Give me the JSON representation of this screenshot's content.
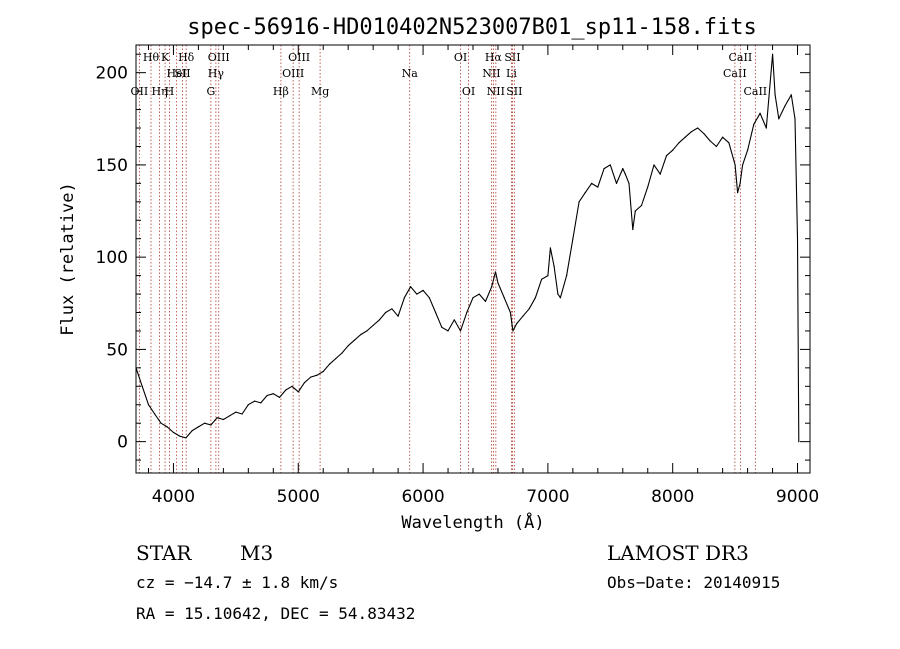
{
  "chart_data": {
    "type": "line",
    "title": "spec-56916-HD010402N523007B01_sp11-158.fits",
    "xlabel": "Wavelength (Å)",
    "ylabel": "Flux (relative)",
    "xlim": [
      3700,
      9100
    ],
    "ylim": [
      -17,
      215
    ],
    "xticks": [
      4000,
      5000,
      6000,
      7000,
      8000,
      9000
    ],
    "yticks": [
      0,
      50,
      100,
      150,
      200
    ],
    "grid": false,
    "series": [
      {
        "name": "flux",
        "color": "#000000",
        "x": [
          3700,
          3750,
          3800,
          3850,
          3900,
          3950,
          4000,
          4050,
          4100,
          4150,
          4200,
          4250,
          4300,
          4350,
          4400,
          4450,
          4500,
          4550,
          4600,
          4650,
          4700,
          4750,
          4800,
          4850,
          4900,
          4950,
          5000,
          5050,
          5100,
          5150,
          5200,
          5250,
          5300,
          5350,
          5400,
          5450,
          5500,
          5550,
          5600,
          5650,
          5700,
          5750,
          5800,
          5850,
          5900,
          5950,
          6000,
          6050,
          6100,
          6150,
          6200,
          6250,
          6300,
          6350,
          6400,
          6450,
          6500,
          6550,
          6580,
          6600,
          6650,
          6700,
          6720,
          6750,
          6800,
          6850,
          6900,
          6950,
          7000,
          7020,
          7050,
          7080,
          7100,
          7150,
          7200,
          7250,
          7300,
          7350,
          7400,
          7450,
          7500,
          7550,
          7600,
          7620,
          7650,
          7680,
          7700,
          7750,
          7800,
          7850,
          7900,
          7950,
          8000,
          8050,
          8100,
          8150,
          8200,
          8250,
          8300,
          8350,
          8400,
          8450,
          8500,
          8520,
          8540,
          8560,
          8600,
          8650,
          8700,
          8750,
          8800,
          8820,
          8850,
          8900,
          8950,
          8980,
          9000,
          9010
        ],
        "y": [
          40,
          30,
          20,
          15,
          10,
          8,
          5,
          3,
          2,
          6,
          8,
          10,
          9,
          13,
          12,
          14,
          16,
          15,
          20,
          22,
          21,
          25,
          26,
          24,
          28,
          30,
          27,
          32,
          35,
          36,
          38,
          42,
          45,
          48,
          52,
          55,
          58,
          60,
          63,
          66,
          70,
          72,
          68,
          78,
          84,
          80,
          82,
          78,
          70,
          62,
          60,
          66,
          60,
          70,
          78,
          80,
          76,
          84,
          92,
          86,
          78,
          70,
          60,
          64,
          68,
          72,
          78,
          88,
          90,
          105,
          95,
          80,
          78,
          90,
          110,
          130,
          135,
          140,
          138,
          148,
          150,
          140,
          148,
          145,
          140,
          115,
          125,
          128,
          138,
          150,
          145,
          155,
          158,
          162,
          165,
          168,
          170,
          167,
          163,
          160,
          165,
          162,
          150,
          135,
          140,
          150,
          158,
          172,
          178,
          170,
          210,
          188,
          175,
          182,
          188,
          175,
          110,
          0
        ]
      }
    ],
    "lines": [
      {
        "wl": 3727,
        "label": "OII",
        "row": 3
      },
      {
        "wl": 3820,
        "label": "Hθ",
        "row": 1
      },
      {
        "wl": 3889,
        "label": "Hη",
        "row": 3
      },
      {
        "wl": 3933,
        "label": "K",
        "row": 1
      },
      {
        "wl": 3968,
        "label": "H",
        "row": 3
      },
      {
        "wl": 4026,
        "label": "HeI",
        "row": 2
      },
      {
        "wl": 4072,
        "label": "SII",
        "row": 2
      },
      {
        "wl": 4102,
        "label": "Hδ",
        "row": 1
      },
      {
        "wl": 4300,
        "label": "G",
        "row": 3
      },
      {
        "wl": 4340,
        "label": "Hγ",
        "row": 2
      },
      {
        "wl": 4363,
        "label": "OIII",
        "row": 1
      },
      {
        "wl": 4861,
        "label": "Hβ",
        "row": 3
      },
      {
        "wl": 4959,
        "label": "OIII",
        "row": 2
      },
      {
        "wl": 5007,
        "label": "OIII",
        "row": 1
      },
      {
        "wl": 5175,
        "label": "Mg",
        "row": 3
      },
      {
        "wl": 5893,
        "label": "Na",
        "row": 2
      },
      {
        "wl": 6300,
        "label": "OI",
        "row": 1
      },
      {
        "wl": 6364,
        "label": "OI",
        "row": 3
      },
      {
        "wl": 6548,
        "label": "NII",
        "row": 2
      },
      {
        "wl": 6563,
        "label": "Hα",
        "row": 1
      },
      {
        "wl": 6583,
        "label": "NII",
        "row": 3
      },
      {
        "wl": 6708,
        "label": "Li",
        "row": 2
      },
      {
        "wl": 6716,
        "label": "SII",
        "row": 1
      },
      {
        "wl": 6731,
        "label": "SII",
        "row": 3
      },
      {
        "wl": 8498,
        "label": "CaII",
        "row": 2
      },
      {
        "wl": 8542,
        "label": "CaII",
        "row": 1
      },
      {
        "wl": 8662,
        "label": "CaII",
        "row": 3
      }
    ]
  },
  "info": {
    "class": "STAR",
    "subclass": "M3",
    "survey": "LAMOST DR3",
    "redshift": "cz = −14.7 ± 1.8 km/s",
    "obs_date": "Obs−Date: 20140915",
    "coords": "RA =  15.10642, DEC =  54.83432"
  }
}
